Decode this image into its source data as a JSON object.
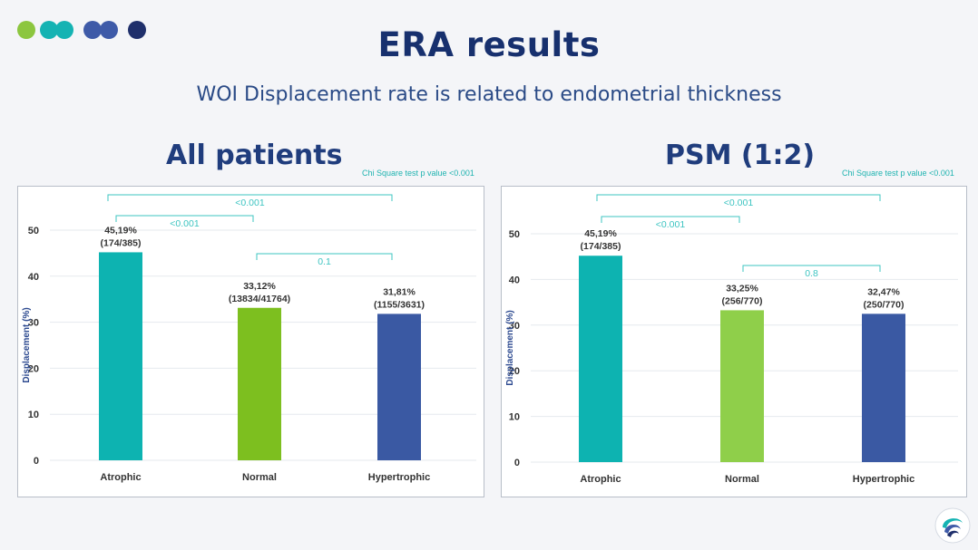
{
  "slide": {
    "title": "ERA results",
    "subtitle": "WOI Displacement rate is related to endometrial thickness"
  },
  "icons": {
    "logo": "logo-dots-icon",
    "brand": "brand-swirl-icon"
  },
  "colors": {
    "atrophic": "#0db3b1",
    "normal_left": "#7dbf1f",
    "normal_right": "#8fcf4a",
    "hypertrophic": "#3a59a3",
    "axis_text": "#333333",
    "ylabel": "#2d4a90",
    "bracket": "#3cc4c1",
    "grid": "#e6e9ee"
  },
  "chart_data": [
    {
      "type": "bar",
      "panel_title": "All patients",
      "stat_note": "Chi Square test p value <0.001",
      "categories": [
        "Atrophic",
        "Normal",
        "Hypertrophic"
      ],
      "values": [
        45.19,
        33.12,
        31.81
      ],
      "value_labels": [
        "45,19%",
        "33,12%",
        "31,81%"
      ],
      "count_labels": [
        "(174/385)",
        "(13834/41764)",
        "(1155/3631)"
      ],
      "ylabel": "Displacement (%)",
      "ylim": [
        0,
        50
      ],
      "yticks": [
        0,
        10,
        20,
        30,
        40,
        50
      ],
      "grid": true,
      "comparisons": [
        {
          "from": 0,
          "to": 1,
          "label": "<0.001"
        },
        {
          "from": 0,
          "to": 2,
          "label": "<0.001"
        },
        {
          "from": 1,
          "to": 2,
          "label": "0.1"
        }
      ]
    },
    {
      "type": "bar",
      "panel_title": "PSM (1:2)",
      "stat_note": "Chi Square test p value <0.001",
      "categories": [
        "Atrophic",
        "Normal",
        "Hypertrophic"
      ],
      "values": [
        45.19,
        33.25,
        32.47
      ],
      "value_labels": [
        "45,19%",
        "33,25%",
        "32,47%"
      ],
      "count_labels": [
        "(174/385)",
        "(256/770)",
        "(250/770)"
      ],
      "ylabel": "Displacement (%)",
      "ylim": [
        0,
        50
      ],
      "yticks": [
        0,
        10,
        20,
        30,
        40,
        50
      ],
      "grid": true,
      "comparisons": [
        {
          "from": 0,
          "to": 1,
          "label": "<0.001"
        },
        {
          "from": 0,
          "to": 2,
          "label": "<0.001"
        },
        {
          "from": 1,
          "to": 2,
          "label": "0.8"
        }
      ]
    }
  ]
}
